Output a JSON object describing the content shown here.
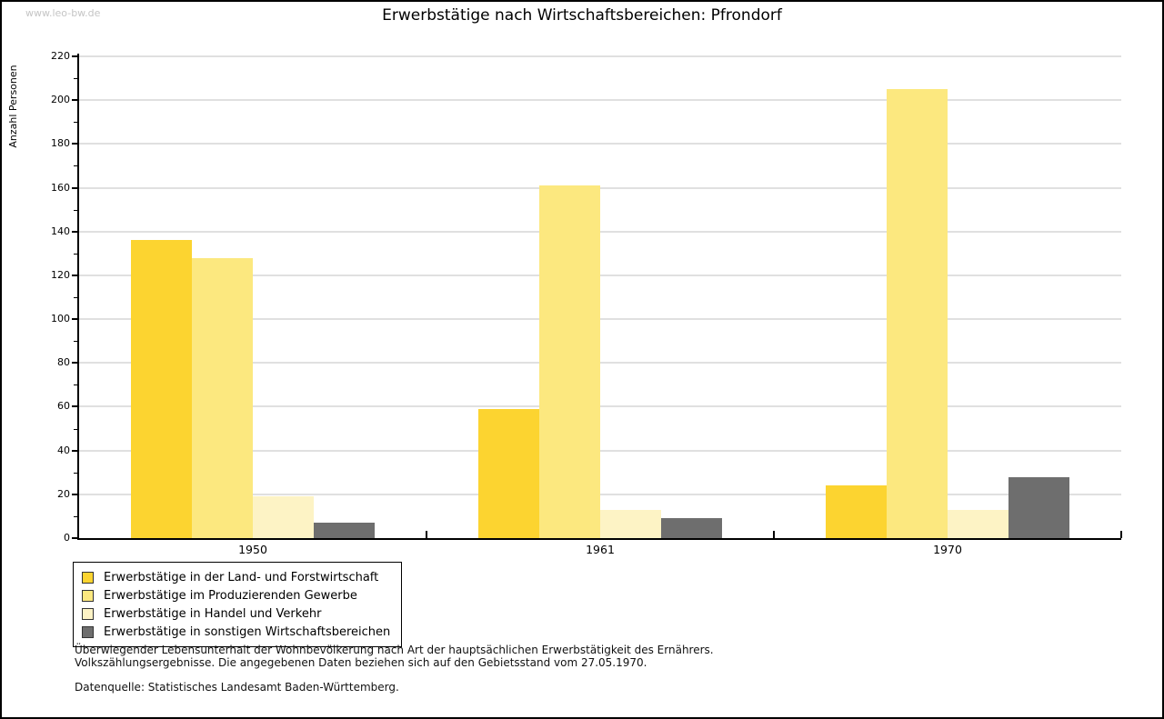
{
  "watermark": "www.leo-bw.de",
  "title": "Erwerbstätige nach Wirtschaftsbereichen: Pfrondorf",
  "chart_data": {
    "type": "bar",
    "title": "Erwerbstätige nach Wirtschaftsbereichen: Pfrondorf",
    "xlabel": "",
    "ylabel": "Anzahl Personen",
    "categories": [
      "1950",
      "1961",
      "1970"
    ],
    "series": [
      {
        "name": "Erwerbstätige in der Land- und Forstwirtschaft",
        "color": "#fcd430",
        "values": [
          136,
          59,
          24
        ]
      },
      {
        "name": "Erwerbstätige im Produzierenden Gewerbe",
        "color": "#fce87f",
        "values": [
          128,
          161,
          205
        ]
      },
      {
        "name": "Erwerbstätige in Handel und Verkehr",
        "color": "#fdf3c5",
        "values": [
          19,
          13,
          13
        ]
      },
      {
        "name": "Erwerbstätige in sonstigen Wirtschaftsbereichen",
        "color": "#6e6e6e",
        "values": [
          7,
          9,
          28
        ]
      }
    ],
    "ylim": [
      0,
      220
    ],
    "ytick_step": 20,
    "ytick_minor_step": 10,
    "grid": true,
    "gridline_color": "#e0e0e0",
    "legend_position": "bottom-left"
  },
  "footnote": {
    "line1": "Überwiegender Lebensunterhalt der Wohnbevölkerung nach Art der hauptsächlichen Erwerbstätigkeit des Ernährers.",
    "line2": "Volkszählungsergebnisse. Die angegebenen Daten beziehen sich auf den Gebietsstand vom 27.05.1970.",
    "source": "Datenquelle: Statistisches Landesamt Baden-Württemberg."
  }
}
